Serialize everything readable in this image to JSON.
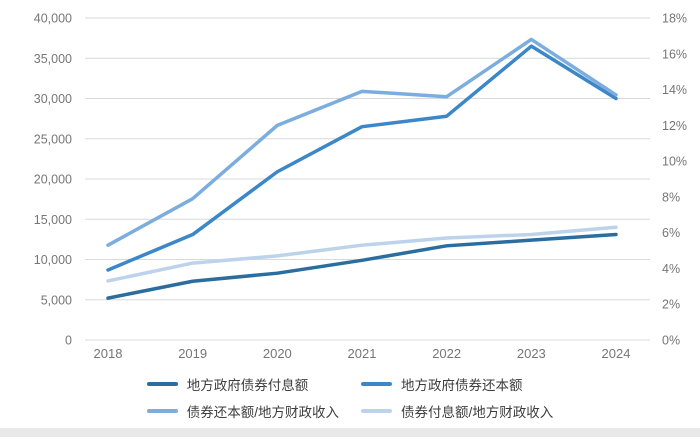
{
  "chart_data": {
    "type": "line",
    "title": "",
    "xlabel": "",
    "ylabel": "",
    "grid": "horizontal",
    "legend_position": "bottom",
    "x_categories": [
      "2018",
      "2019",
      "2020",
      "2021",
      "2022",
      "2023",
      "2024"
    ],
    "left_axis": {
      "min": 0,
      "max": 40000,
      "step": 5000,
      "tick_labels": [
        "0",
        "5,000",
        "10,000",
        "15,000",
        "20,000",
        "25,000",
        "30,000",
        "35,000",
        "40,000"
      ]
    },
    "right_axis": {
      "min": 0,
      "max": 18,
      "step": 2,
      "tick_labels": [
        "0%",
        "2%",
        "4%",
        "6%",
        "8%",
        "10%",
        "12%",
        "14%",
        "16%",
        "18%"
      ]
    },
    "series": [
      {
        "name": "地方政府债券付息额",
        "axis": "left",
        "color": "#2a6d9e",
        "values": [
          5200,
          7300,
          8300,
          9900,
          11700,
          12400,
          13100
        ]
      },
      {
        "name": "地方政府债券还本额",
        "axis": "left",
        "color": "#3b87c8",
        "values": [
          8700,
          13100,
          20900,
          26500,
          27800,
          36500,
          30000
        ]
      },
      {
        "name": "债券还本额/地方财政收入",
        "axis": "right",
        "unit": "%",
        "color": "#7badde",
        "values": [
          5.3,
          7.9,
          12.0,
          13.9,
          13.6,
          16.8,
          13.7
        ]
      },
      {
        "name": "债券付息额/地方财政收入",
        "axis": "right",
        "unit": "%",
        "color": "#bdd3ec",
        "values": [
          3.3,
          4.3,
          4.7,
          5.3,
          5.7,
          5.9,
          6.3
        ]
      }
    ],
    "style": {
      "gridline_color": "#d9d9d9",
      "tick_label_color": "#767676",
      "line_width": 3.5
    }
  }
}
